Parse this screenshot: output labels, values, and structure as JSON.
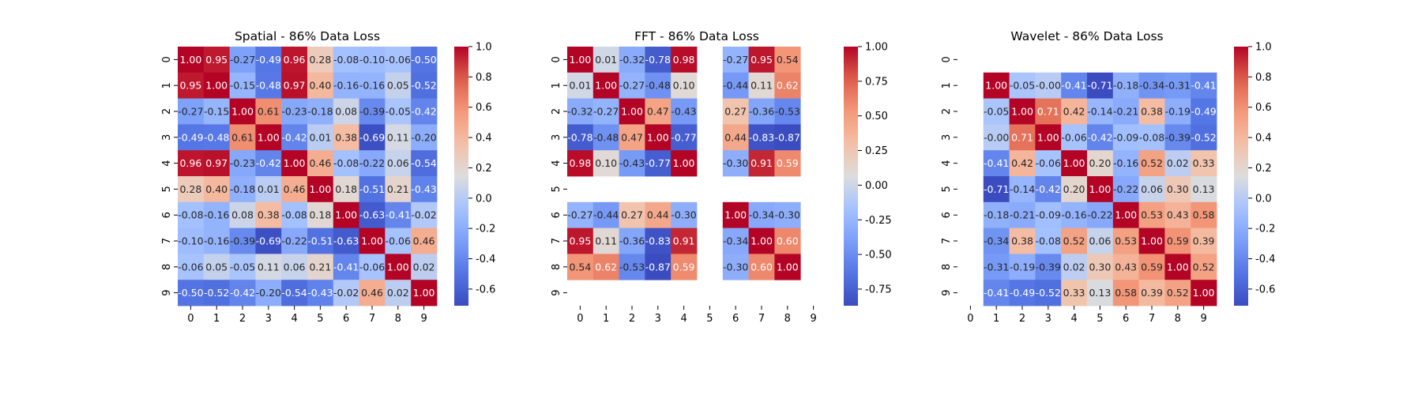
{
  "chart_data": [
    {
      "type": "heatmap",
      "title": "Spatial - 86% Data Loss",
      "x_ticks": [
        "0",
        "1",
        "2",
        "3",
        "4",
        "5",
        "6",
        "7",
        "8",
        "9"
      ],
      "y_ticks": [
        "0",
        "1",
        "2",
        "3",
        "4",
        "5",
        "6",
        "7",
        "8",
        "9"
      ],
      "vmin": -0.71,
      "vmax": 1.0,
      "colorbar_ticks": [
        "-0.6",
        "-0.4",
        "-0.2",
        "0.0",
        "0.2",
        "0.4",
        "0.6",
        "0.8",
        "1.0"
      ],
      "colormap": "coolwarm",
      "values": [
        [
          1.0,
          0.95,
          -0.27,
          -0.49,
          0.96,
          0.28,
          -0.08,
          -0.1,
          -0.06,
          -0.5
        ],
        [
          0.95,
          1.0,
          -0.15,
          -0.48,
          0.97,
          0.4,
          -0.16,
          -0.16,
          0.05,
          -0.52
        ],
        [
          -0.27,
          -0.15,
          1.0,
          0.61,
          -0.23,
          -0.18,
          0.08,
          -0.39,
          -0.05,
          -0.42
        ],
        [
          -0.49,
          -0.48,
          0.61,
          1.0,
          -0.42,
          0.01,
          0.38,
          -0.69,
          0.11,
          -0.2
        ],
        [
          0.96,
          0.97,
          -0.23,
          -0.42,
          1.0,
          0.46,
          -0.08,
          -0.22,
          0.06,
          -0.54
        ],
        [
          0.28,
          0.4,
          -0.18,
          0.01,
          0.46,
          1.0,
          0.18,
          -0.51,
          0.21,
          -0.43
        ],
        [
          -0.08,
          -0.16,
          0.08,
          0.38,
          -0.08,
          0.18,
          1.0,
          -0.63,
          -0.41,
          -0.02
        ],
        [
          -0.1,
          -0.16,
          -0.39,
          -0.69,
          -0.22,
          -0.51,
          -0.63,
          1.0,
          -0.06,
          0.46
        ],
        [
          -0.06,
          0.05,
          -0.05,
          0.11,
          0.06,
          0.21,
          -0.41,
          -0.06,
          1.0,
          0.02
        ],
        [
          -0.5,
          -0.52,
          -0.42,
          -0.2,
          -0.54,
          -0.43,
          -0.02,
          0.46,
          0.02,
          1.0
        ]
      ]
    },
    {
      "type": "heatmap",
      "title": "FFT - 86% Data Loss",
      "x_ticks": [
        "0",
        "1",
        "2",
        "3",
        "4",
        "5",
        "6",
        "7",
        "8",
        "9"
      ],
      "y_ticks": [
        "0",
        "1",
        "2",
        "3",
        "4",
        "5",
        "6",
        "7",
        "8",
        "9"
      ],
      "vmin": -0.87,
      "vmax": 1.0,
      "colorbar_ticks": [
        "-0.75",
        "-0.50",
        "-0.25",
        "0.00",
        "0.25",
        "0.50",
        "0.75",
        "1.00"
      ],
      "colormap": "coolwarm",
      "values": [
        [
          1.0,
          0.01,
          -0.32,
          -0.78,
          0.98,
          null,
          -0.27,
          0.95,
          0.54,
          null
        ],
        [
          0.01,
          1.0,
          -0.27,
          -0.48,
          0.1,
          null,
          -0.44,
          0.11,
          0.62,
          null
        ],
        [
          -0.32,
          -0.27,
          1.0,
          0.47,
          -0.43,
          null,
          0.27,
          -0.36,
          -0.53,
          null
        ],
        [
          -0.78,
          -0.48,
          0.47,
          1.0,
          -0.77,
          null,
          0.44,
          -0.83,
          -0.87,
          null
        ],
        [
          0.98,
          0.1,
          -0.43,
          -0.77,
          1.0,
          null,
          -0.3,
          0.91,
          0.59,
          null
        ],
        [
          null,
          null,
          null,
          null,
          null,
          null,
          null,
          null,
          null,
          null
        ],
        [
          -0.27,
          -0.44,
          0.27,
          0.44,
          -0.3,
          null,
          1.0,
          -0.34,
          -0.3,
          null
        ],
        [
          0.95,
          0.11,
          -0.36,
          -0.83,
          0.91,
          null,
          -0.34,
          1.0,
          0.6,
          null
        ],
        [
          0.54,
          0.62,
          -0.53,
          -0.87,
          0.59,
          null,
          -0.3,
          0.6,
          1.0,
          null
        ],
        [
          null,
          null,
          null,
          null,
          null,
          null,
          null,
          null,
          null,
          null
        ]
      ]
    },
    {
      "type": "heatmap",
      "title": "Wavelet - 86% Data Loss",
      "x_ticks": [
        "0",
        "1",
        "2",
        "3",
        "4",
        "5",
        "6",
        "7",
        "8",
        "9"
      ],
      "y_ticks": [
        "0",
        "1",
        "2",
        "3",
        "4",
        "5",
        "6",
        "7",
        "8",
        "9"
      ],
      "vmin": -0.71,
      "vmax": 1.0,
      "colorbar_ticks": [
        "-0.6",
        "-0.4",
        "-0.2",
        "0.0",
        "0.2",
        "0.4",
        "0.6",
        "0.8",
        "1.0"
      ],
      "colormap": "coolwarm",
      "values": [
        [
          null,
          null,
          null,
          null,
          null,
          null,
          null,
          null,
          null,
          null
        ],
        [
          null,
          1.0,
          -0.05,
          -0.0,
          -0.41,
          -0.71,
          -0.18,
          -0.34,
          -0.31,
          -0.41
        ],
        [
          null,
          -0.05,
          1.0,
          0.71,
          0.42,
          -0.14,
          -0.21,
          0.38,
          -0.19,
          -0.49
        ],
        [
          null,
          -0.0,
          0.71,
          1.0,
          -0.06,
          -0.42,
          -0.09,
          -0.08,
          -0.39,
          -0.52
        ],
        [
          null,
          -0.41,
          0.42,
          -0.06,
          1.0,
          0.2,
          -0.16,
          0.52,
          0.02,
          0.33
        ],
        [
          null,
          -0.71,
          -0.14,
          -0.42,
          0.2,
          1.0,
          -0.22,
          0.06,
          0.3,
          0.13
        ],
        [
          null,
          -0.18,
          -0.21,
          -0.09,
          -0.16,
          -0.22,
          1.0,
          0.53,
          0.43,
          0.58
        ],
        [
          null,
          -0.34,
          0.38,
          -0.08,
          0.52,
          0.06,
          0.53,
          1.0,
          0.59,
          0.39
        ],
        [
          null,
          -0.31,
          -0.19,
          -0.39,
          0.02,
          0.3,
          0.43,
          0.59,
          1.0,
          0.52
        ],
        [
          null,
          -0.41,
          -0.49,
          -0.52,
          0.33,
          0.13,
          0.58,
          0.39,
          0.52,
          1.0
        ]
      ]
    }
  ]
}
